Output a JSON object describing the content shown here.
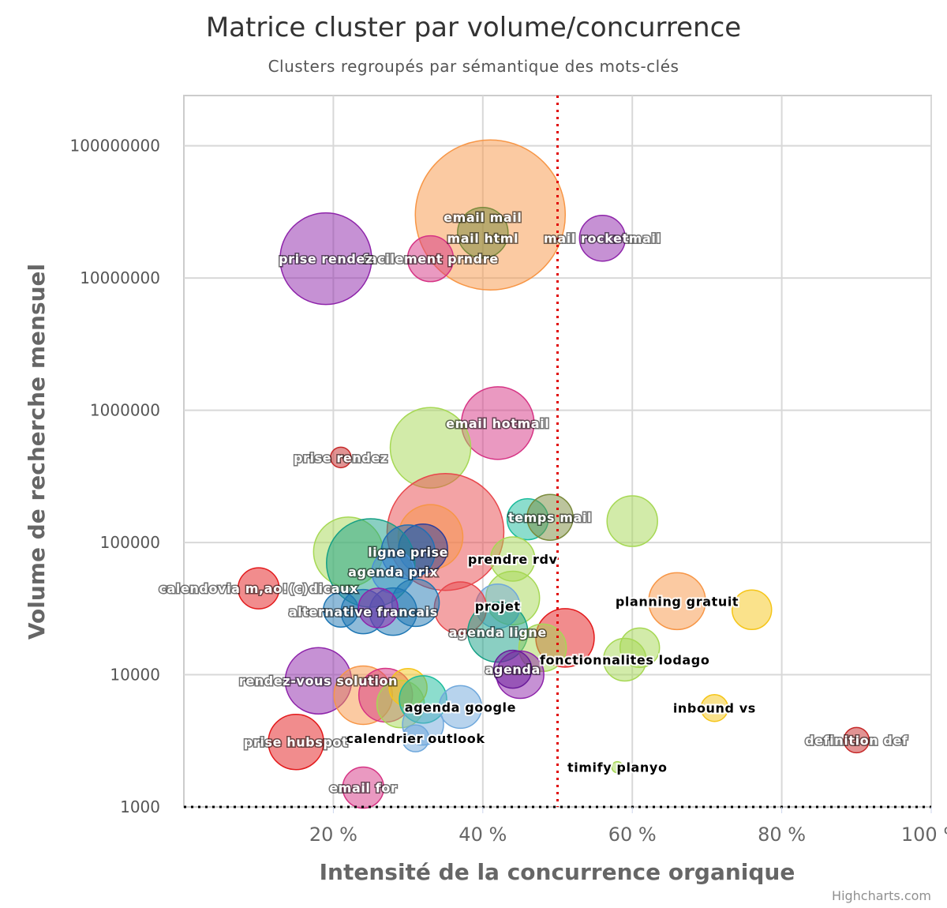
{
  "chart_data": {
    "type": "bubble",
    "title": "Matrice cluster par volume/concurrence",
    "subtitle": "Clusters regroupés par sémantique des mots-clés",
    "xlabel": "Intensité de la concurrence organique",
    "ylabel": "Volume de recherche mensuel",
    "xlim": [
      0,
      100
    ],
    "x_ticks": [
      "20 %",
      "40 %",
      "60 %",
      "80 %",
      "100 %"
    ],
    "y_scale": "log",
    "ylim": [
      1000,
      240000000
    ],
    "y_ticks": [
      "1000",
      "10000",
      "100000",
      "1000000",
      "10000000",
      "100000000"
    ],
    "reference_lines": {
      "x": 50,
      "y": 1000,
      "style": "dotted",
      "x_color": "#e00000",
      "y_color": "#000000"
    },
    "credits": "Highcharts.com",
    "grid": true,
    "points": [
      {
        "x": 41,
        "y": 30000000,
        "size": 95,
        "color": "#f79646"
      },
      {
        "x": 40,
        "y": 22000000,
        "size": 32,
        "color": "#7a8a3c",
        "label": "email mail"
      },
      {
        "x": 40,
        "y": 20000000,
        "size": 0,
        "color": "#7a8a3c",
        "label": "mail html"
      },
      {
        "x": 56,
        "y": 20000000,
        "size": 29,
        "color": "#8e24aa",
        "label": "mail rocketmail"
      },
      {
        "x": 33,
        "y": 14000000,
        "size": 29,
        "color": "#d63384",
        "label": "facilement prndre"
      },
      {
        "x": 19,
        "y": 14000000,
        "size": 58,
        "color": "#8e24aa",
        "label": "prise rendez"
      },
      {
        "x": 42,
        "y": 800000,
        "size": 46,
        "color": "#d63384",
        "label": "email hotmail"
      },
      {
        "x": 33,
        "y": 520000,
        "size": 51,
        "color": "#a6d854"
      },
      {
        "x": 21,
        "y": 440000,
        "size": 13,
        "color": "#c62828",
        "label": "prise rendez"
      },
      {
        "x": 35,
        "y": 120000,
        "size": 74,
        "color": "#e8474c"
      },
      {
        "x": 33,
        "y": 110000,
        "size": 41,
        "color": "#f79646"
      },
      {
        "x": 32,
        "y": 90000,
        "size": 31,
        "color": "#2c3e9b"
      },
      {
        "x": 46,
        "y": 150000,
        "size": 26,
        "color": "#1abc9c"
      },
      {
        "x": 49,
        "y": 155000,
        "size": 29,
        "color": "#7a8a3c",
        "label": "temps mail"
      },
      {
        "x": 60,
        "y": 145000,
        "size": 32,
        "color": "#a6d854"
      },
      {
        "x": 22,
        "y": 85000,
        "size": 44,
        "color": "#a6d854"
      },
      {
        "x": 25,
        "y": 70000,
        "size": 56,
        "color": "#16a085"
      },
      {
        "x": 30,
        "y": 85000,
        "size": 34,
        "color": "#1f6fb5",
        "label": "ligne prise"
      },
      {
        "x": 44,
        "y": 75000,
        "size": 28,
        "color": "#a6d854",
        "label": "prendre rdv"
      },
      {
        "x": 28,
        "y": 60000,
        "size": 27,
        "color": "#4a90d9",
        "label": "agenda prix"
      },
      {
        "x": 10,
        "y": 45000,
        "size": 26,
        "color": "#e31a1c",
        "label": "calendovia m,ao!(c)dicaux"
      },
      {
        "x": 44,
        "y": 38000,
        "size": 34,
        "color": "#a6d854"
      },
      {
        "x": 42,
        "y": 33000,
        "size": 28,
        "color": "#6fa8dc",
        "label": "projet"
      },
      {
        "x": 66,
        "y": 36000,
        "size": 36,
        "color": "#f79646",
        "label": "planning gratuit"
      },
      {
        "x": 76,
        "y": 31000,
        "size": 25,
        "color": "#f5c518"
      },
      {
        "x": 37,
        "y": 32000,
        "size": 33,
        "color": "#e8474c"
      },
      {
        "x": 31,
        "y": 35000,
        "size": 30,
        "color": "#1f77b4"
      },
      {
        "x": 28,
        "y": 30000,
        "size": 30,
        "color": "#1f77b4"
      },
      {
        "x": 24,
        "y": 30000,
        "size": 28,
        "color": "#1f77b4",
        "label": "alternative francais"
      },
      {
        "x": 21,
        "y": 31000,
        "size": 22,
        "color": "#1f77b4"
      },
      {
        "x": 26,
        "y": 32000,
        "size": 25,
        "color": "#8e24aa"
      },
      {
        "x": 51,
        "y": 19000,
        "size": 37,
        "color": "#e31a1c"
      },
      {
        "x": 42,
        "y": 21000,
        "size": 38,
        "color": "#16a085",
        "label": "agenda ligne"
      },
      {
        "x": 48,
        "y": 16000,
        "size": 30,
        "color": "#a6d854"
      },
      {
        "x": 61,
        "y": 16000,
        "size": 25,
        "color": "#a6d854"
      },
      {
        "x": 59,
        "y": 13000,
        "size": 27,
        "color": "#a6d854",
        "label": "fonctionnalites lodago"
      },
      {
        "x": 45,
        "y": 10000,
        "size": 30,
        "color": "#8e24aa"
      },
      {
        "x": 44,
        "y": 11000,
        "size": 24,
        "color": "#6a1b9a",
        "label": "agenda"
      },
      {
        "x": 18,
        "y": 9000,
        "size": 42,
        "color": "#8e24aa",
        "label": "rendez-vous solution"
      },
      {
        "x": 24,
        "y": 7000,
        "size": 37,
        "color": "#f79646"
      },
      {
        "x": 27,
        "y": 7000,
        "size": 34,
        "color": "#d63384"
      },
      {
        "x": 29,
        "y": 6000,
        "size": 30,
        "color": "#a6d854"
      },
      {
        "x": 30,
        "y": 8000,
        "size": 24,
        "color": "#f5c518"
      },
      {
        "x": 32,
        "y": 6500,
        "size": 30,
        "color": "#1abc9c"
      },
      {
        "x": 37,
        "y": 5700,
        "size": 27,
        "color": "#6fa8dc",
        "label": "agenda google"
      },
      {
        "x": 32,
        "y": 4200,
        "size": 26,
        "color": "#6fa8dc"
      },
      {
        "x": 31,
        "y": 3300,
        "size": 17,
        "color": "#6fa8dc",
        "label": "calendrier outlook"
      },
      {
        "x": 71,
        "y": 5600,
        "size": 17,
        "color": "#f5c518",
        "label": "inbound vs"
      },
      {
        "x": 15,
        "y": 3100,
        "size": 35,
        "color": "#e31a1c",
        "label": "prise hubspot"
      },
      {
        "x": 90,
        "y": 3200,
        "size": 16,
        "color": "#c62828",
        "label": "definition def"
      },
      {
        "x": 58,
        "y": 2000,
        "size": 7,
        "color": "#a6d854",
        "label": "timify planyo"
      },
      {
        "x": 24,
        "y": 1400,
        "size": 26,
        "color": "#d63384",
        "label": "email for"
      }
    ]
  }
}
